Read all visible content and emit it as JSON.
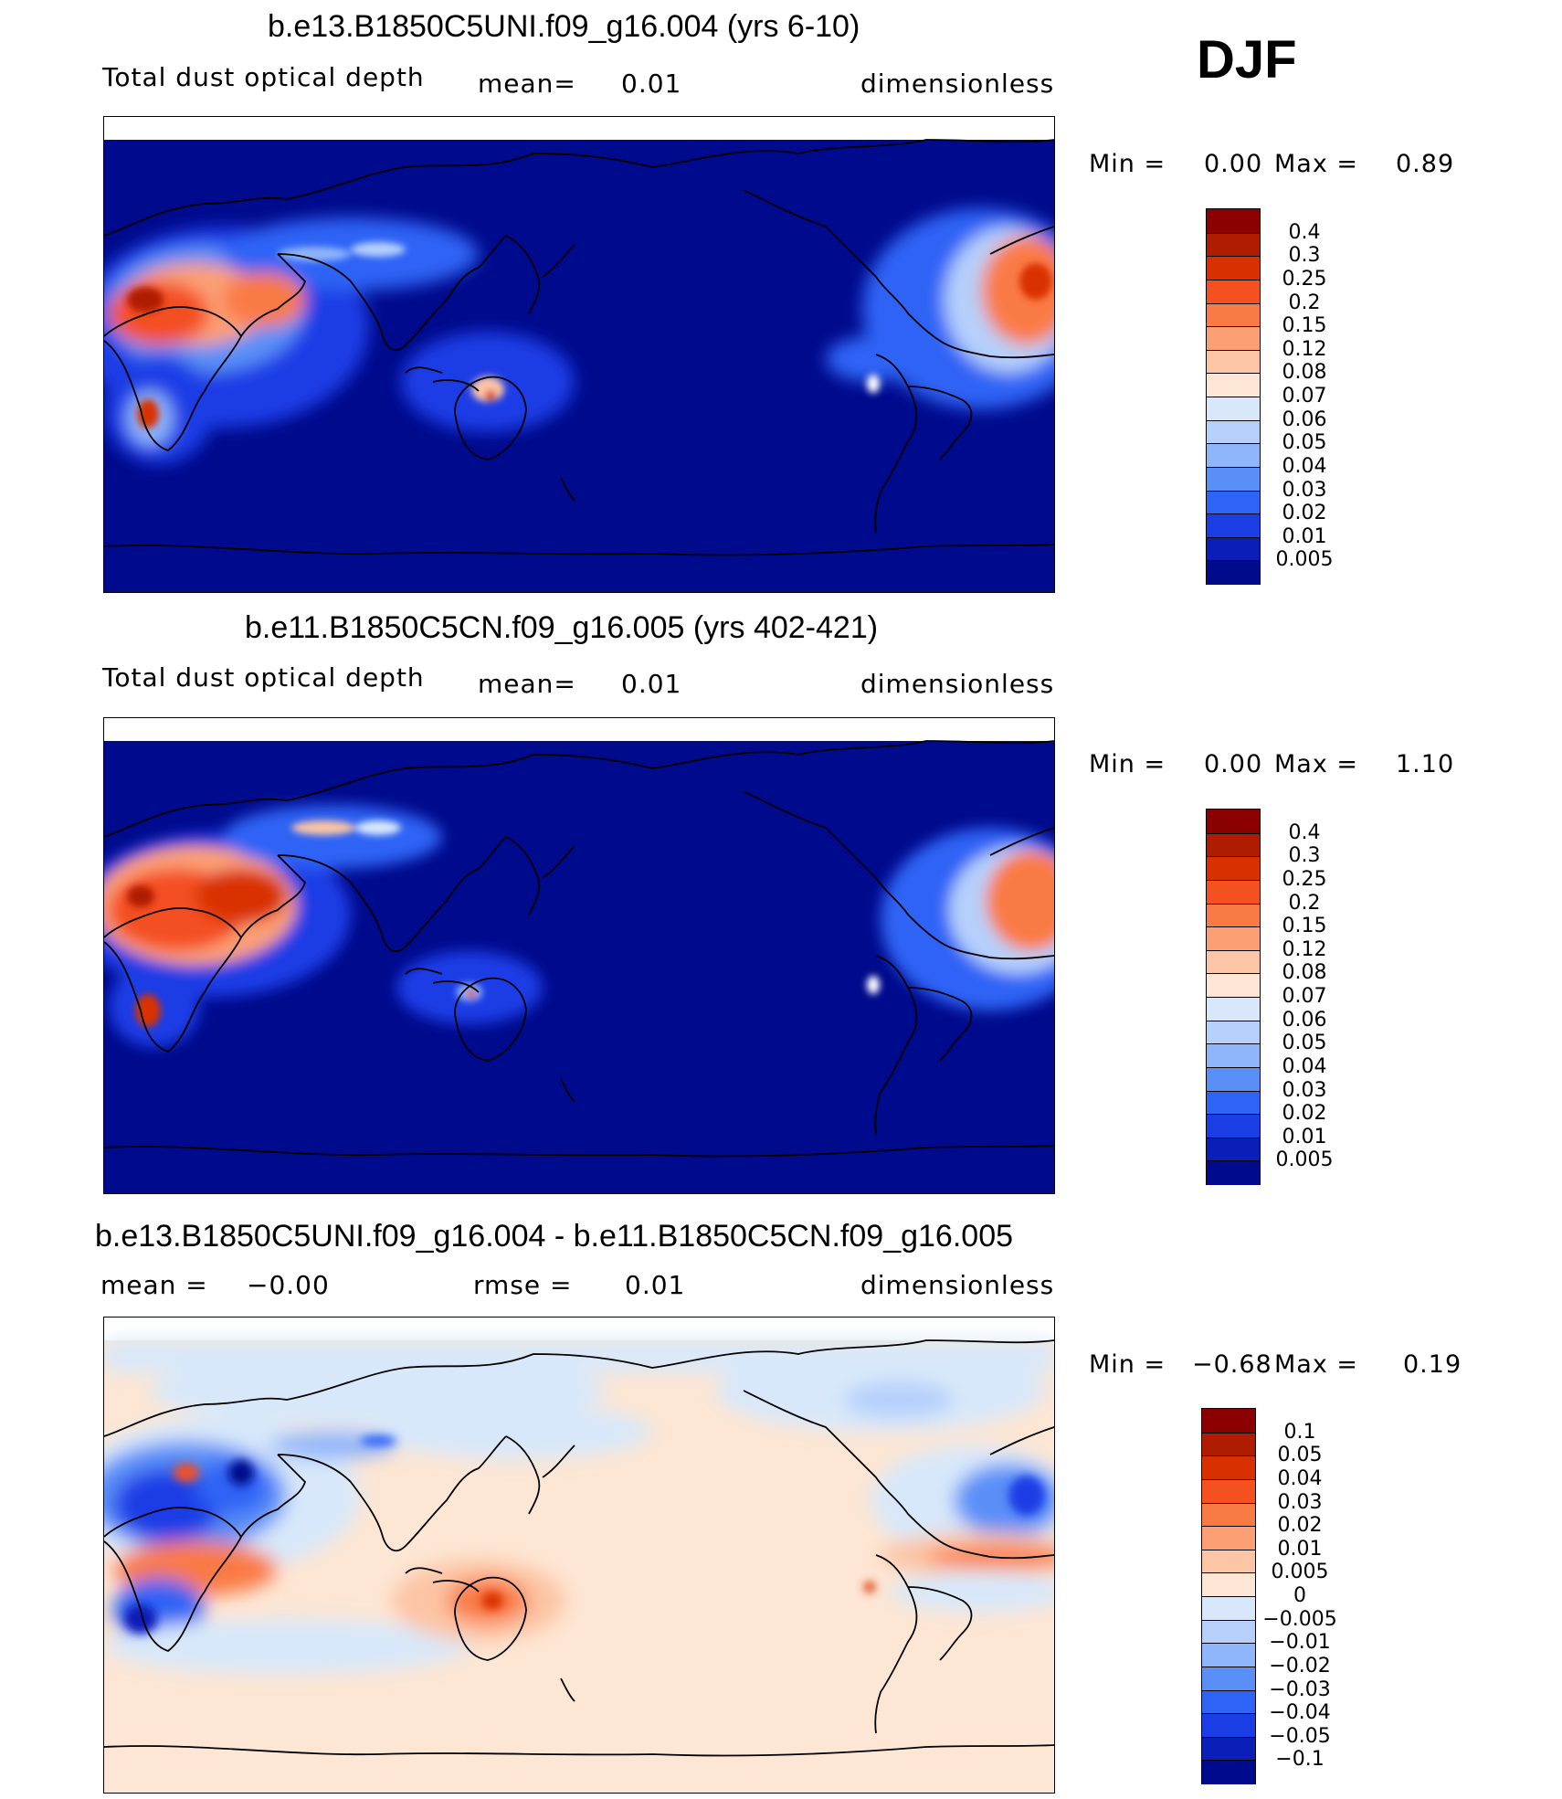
{
  "season": "DJF",
  "panels": [
    {
      "title": "b.e13.B1850C5UNI.f09_g16.004 (yrs 6-10)",
      "left_label": "Total dust optical depth",
      "mid_label": "mean=",
      "mid_value": "0.01",
      "units": "dimensionless",
      "min_label": "Min =",
      "min_value": "0.00",
      "max_label": "Max =",
      "max_value": "0.89",
      "colorbar_labels": [
        "0.4",
        "0.3",
        "0.25",
        "0.2",
        "0.15",
        "0.12",
        "0.08",
        "0.07",
        "0.06",
        "0.05",
        "0.04",
        "0.03",
        "0.02",
        "0.01",
        "0.005"
      ],
      "colorbar_colors": [
        "#8b0000",
        "#b01c00",
        "#d93000",
        "#f45020",
        "#fa7a45",
        "#fc9f75",
        "#fcc5a5",
        "#fde6d3",
        "#d8e8fa",
        "#b5d0fb",
        "#8fb5fb",
        "#5a8ff7",
        "#2e64f5",
        "#1a3de6",
        "#0b1fb8",
        "#000a8c"
      ]
    },
    {
      "title": "b.e11.B1850C5CN.f09_g16.005 (yrs 402-421)",
      "left_label": "Total dust optical depth",
      "mid_label": "mean=",
      "mid_value": "0.01",
      "units": "dimensionless",
      "min_label": "Min =",
      "min_value": "0.00",
      "max_label": "Max =",
      "max_value": "1.10",
      "colorbar_labels": [
        "0.4",
        "0.3",
        "0.25",
        "0.2",
        "0.15",
        "0.12",
        "0.08",
        "0.07",
        "0.06",
        "0.05",
        "0.04",
        "0.03",
        "0.02",
        "0.01",
        "0.005"
      ],
      "colorbar_colors": [
        "#8b0000",
        "#b01c00",
        "#d93000",
        "#f45020",
        "#fa7a45",
        "#fc9f75",
        "#fcc5a5",
        "#fde6d3",
        "#d8e8fa",
        "#b5d0fb",
        "#8fb5fb",
        "#5a8ff7",
        "#2e64f5",
        "#1a3de6",
        "#0b1fb8",
        "#000a8c"
      ]
    },
    {
      "title": "b.e13.B1850C5UNI.f09_g16.004 - b.e11.B1850C5CN.f09_g16.005",
      "left_label": "mean =",
      "left_value": "−0.00",
      "mid_label": "rmse =",
      "mid_value": "0.01",
      "units": "dimensionless",
      "min_label": "Min =",
      "min_value": "−0.68",
      "max_label": "Max =",
      "max_value": "0.19",
      "colorbar_labels": [
        "0.1",
        "0.05",
        "0.04",
        "0.03",
        "0.02",
        "0.01",
        "0.005",
        "0",
        "−0.005",
        "−0.01",
        "−0.02",
        "−0.03",
        "−0.04",
        "−0.05",
        "−0.1"
      ],
      "colorbar_colors": [
        "#8b0000",
        "#b01c00",
        "#d93000",
        "#f45020",
        "#fa7a45",
        "#fc9f75",
        "#fcc5a5",
        "#fde6d3",
        "#d8e8fa",
        "#b5d0fb",
        "#8fb5fb",
        "#5a8ff7",
        "#2e64f5",
        "#1a3de6",
        "#0b1fb8",
        "#000a8c"
      ]
    }
  ],
  "colors": {
    "ocean_abs": "#000a8c",
    "diff_background": "#fde6d3",
    "coastline": "#000000"
  }
}
